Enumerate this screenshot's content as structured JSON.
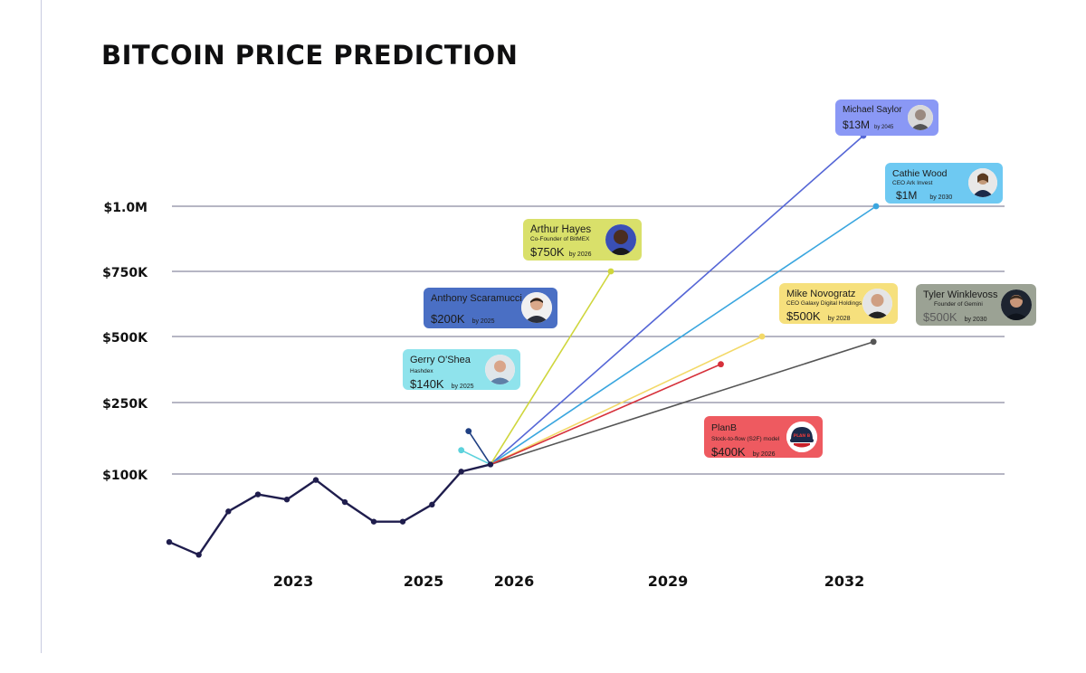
{
  "title": "BITCOIN PRICE PREDICTION",
  "chart_data": {
    "type": "line",
    "title": "BITCOIN PRICE PREDICTION",
    "y_tick_labels": [
      "$100K",
      "$250K",
      "$500K",
      "$750K",
      "$1.0M"
    ],
    "x_tick_labels": [
      "2023",
      "2025",
      "2026",
      "2029",
      "2032"
    ],
    "grid": true,
    "history": {
      "name": "BTC price",
      "color": "#1f1d4d",
      "points": [
        {
          "x": 2021.8,
          "y": 20
        },
        {
          "x": 2022.2,
          "y": 5
        },
        {
          "x": 2022.6,
          "y": 56
        },
        {
          "x": 2023.0,
          "y": 76
        },
        {
          "x": 2023.4,
          "y": 70
        },
        {
          "x": 2023.8,
          "y": 93
        },
        {
          "x": 2024.2,
          "y": 67
        },
        {
          "x": 2024.6,
          "y": 44
        },
        {
          "x": 2025.0,
          "y": 44
        },
        {
          "x": 2025.4,
          "y": 64
        },
        {
          "x": 2025.8,
          "y": 105
        },
        {
          "x": 2026.2,
          "y": 120
        }
      ]
    },
    "origin": {
      "x": 2026.2,
      "y": 120
    },
    "predictions": [
      {
        "name": "Michael Saylor",
        "target": "$13M",
        "by": "by 2045",
        "x": 2033.5,
        "y": 1300,
        "color": "#5566d6"
      },
      {
        "name": "Cathie Wood",
        "target": "$1M",
        "by": "by 2030",
        "x": 2034.5,
        "y": 1000,
        "color": "#3aa6df"
      },
      {
        "name": "Arthur Hayes",
        "target": "$750K",
        "by": "by 2026",
        "x": 2028.1,
        "y": 750,
        "color": "#cfd63c"
      },
      {
        "name": "Anthony Scaramucci",
        "target": "$200K",
        "by": "by 2025",
        "x": 2025.9,
        "y": 190,
        "color": "#1f3f82"
      },
      {
        "name": "Gerry O'Shea",
        "target": "$140K",
        "by": "by 2025",
        "x": 2025.8,
        "y": 150,
        "color": "#5cd2dc"
      },
      {
        "name": "Mike Novogratz",
        "target": "$500K",
        "by": "by 2028",
        "x": 2030.6,
        "y": 500,
        "color": "#f3d968"
      },
      {
        "name": "Tyler Winklevoss",
        "target": "$500K",
        "by": "by 2030",
        "x": 2034.3,
        "y": 480,
        "color": "#555555"
      },
      {
        "name": "PlanB",
        "target": "$400K",
        "by": "by 2026",
        "x": 2029.9,
        "y": 395,
        "color": "#d6303a"
      }
    ]
  },
  "cards": {
    "saylor": {
      "name": "Michael Saylor",
      "role": "",
      "price": "$13M",
      "by": "by 2045"
    },
    "wood": {
      "name": "Cathie Wood",
      "role": "CEO Ark Invest",
      "price": "$1M",
      "by": "by 2030"
    },
    "hayes": {
      "name": "Arthur Hayes",
      "role": "Co-Founder of BitMEX",
      "price": "$750K",
      "by": "by 2026"
    },
    "scaramucci": {
      "name": "Anthony Scaramucci",
      "role": "",
      "price": "$200K",
      "by": "by 2025"
    },
    "oshea": {
      "name": "Gerry O'Shea",
      "role": "Hashdex",
      "price": "$140K",
      "by": "by 2025"
    },
    "novogratz": {
      "name": "Mike Novogratz",
      "role": "CEO Galaxy Digital Holdings",
      "price": "$500K",
      "by": "by 2028"
    },
    "winklevoss": {
      "name": "Tyler Winklevoss",
      "role": "Founder of Gemini",
      "price": "$500K",
      "by": "by 2030"
    },
    "planb": {
      "name": "PlanB",
      "role": "Stock-to-flow (S2F) model",
      "price": "$400K",
      "by": "by 2026",
      "logo_text": "PLAN B"
    }
  },
  "colors": {
    "saylor": "#8a98f5",
    "wood": "#6ec9f2",
    "hayes": "#d9e06a",
    "scaramucci": "#4a6fc4",
    "oshea": "#8fe3ec",
    "novogratz": "#f6e07d",
    "winklevoss": "#9ba294",
    "planb": "#ee5a60",
    "grid": "#8a8aa0",
    "history": "#1f1d4d"
  },
  "icons": [
    "person-avatar-icon",
    "planb-cap-logo-icon"
  ]
}
